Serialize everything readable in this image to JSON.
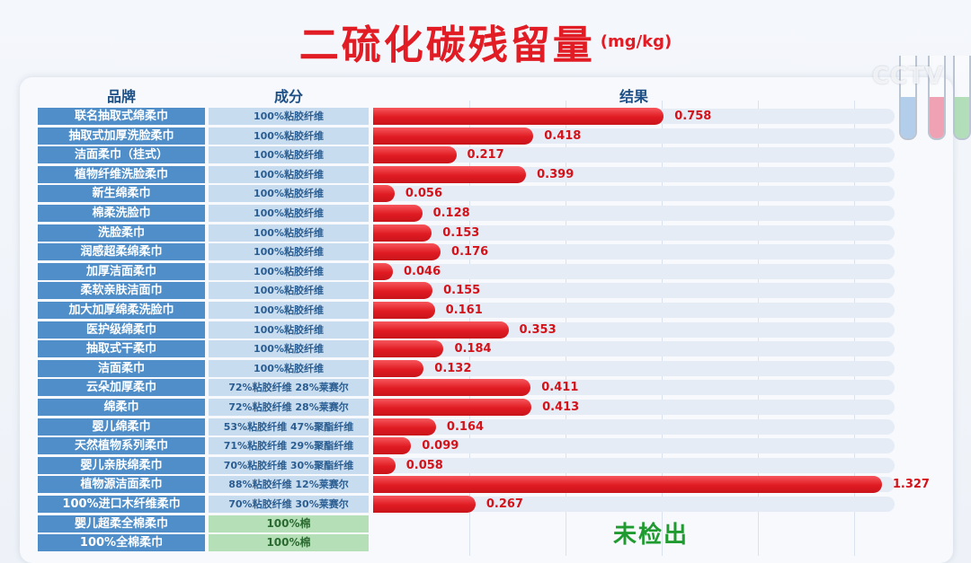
{
  "title": "二硫化碳残留量",
  "unit": "(mg/kg)",
  "watermark": "CCTV",
  "headers": {
    "brand": "品牌",
    "composition": "成分",
    "result": "结果"
  },
  "not_detected_text": "未检出",
  "colors": {
    "bar": "#e01b22",
    "brand_cell": "#4f8ec8",
    "comp_cell": "#c8dcef",
    "nd_cell": "#b5dfb6",
    "title": "#e11c24",
    "nd_text": "#1f9b30"
  },
  "chart_data": {
    "type": "bar",
    "orientation": "horizontal",
    "title": "二硫化碳残留量",
    "unit": "(mg/kg)",
    "xlim": [
      0,
      1.4
    ],
    "rows": [
      {
        "brand": "联名抽取式绵柔巾",
        "composition": "100%粘胶纤维",
        "value": 0.758,
        "label": "0.758"
      },
      {
        "brand": "抽取式加厚洗脸柔巾",
        "composition": "100%粘胶纤维",
        "value": 0.418,
        "label": "0.418"
      },
      {
        "brand": "洁面柔巾（挂式）",
        "composition": "100%粘胶纤维",
        "value": 0.217,
        "label": "0.217"
      },
      {
        "brand": "植物纤维洗脸柔巾",
        "composition": "100%粘胶纤维",
        "value": 0.399,
        "label": "0.399"
      },
      {
        "brand": "新生绵柔巾",
        "composition": "100%粘胶纤维",
        "value": 0.056,
        "label": "0.056"
      },
      {
        "brand": "棉柔洗脸巾",
        "composition": "100%粘胶纤维",
        "value": 0.128,
        "label": "0.128"
      },
      {
        "brand": "洗脸柔巾",
        "composition": "100%粘胶纤维",
        "value": 0.153,
        "label": "0.153"
      },
      {
        "brand": "润感超柔绵柔巾",
        "composition": "100%粘胶纤维",
        "value": 0.176,
        "label": "0.176"
      },
      {
        "brand": "加厚洁面柔巾",
        "composition": "100%粘胶纤维",
        "value": 0.046,
        "label": "0.046"
      },
      {
        "brand": "柔软亲肤洁面巾",
        "composition": "100%粘胶纤维",
        "value": 0.155,
        "label": "0.155"
      },
      {
        "brand": "加大加厚绵柔洗脸巾",
        "composition": "100%粘胶纤维",
        "value": 0.161,
        "label": "0.161"
      },
      {
        "brand": "医护级绵柔巾",
        "composition": "100%粘胶纤维",
        "value": 0.353,
        "label": "0.353"
      },
      {
        "brand": "抽取式干柔巾",
        "composition": "100%粘胶纤维",
        "value": 0.184,
        "label": "0.184"
      },
      {
        "brand": "洁面柔巾",
        "composition": "100%粘胶纤维",
        "value": 0.132,
        "label": "0.132"
      },
      {
        "brand": "云朵加厚柔巾",
        "composition": "72%粘胶纤维 28%莱赛尔",
        "value": 0.411,
        "label": "0.411"
      },
      {
        "brand": "绵柔巾",
        "composition": "72%粘胶纤维 28%莱赛尔",
        "value": 0.413,
        "label": "0.413"
      },
      {
        "brand": "婴儿绵柔巾",
        "composition": "53%粘胶纤维 47%聚酯纤维",
        "value": 0.164,
        "label": "0.164"
      },
      {
        "brand": "天然植物系列柔巾",
        "composition": "71%粘胶纤维 29%聚酯纤维",
        "value": 0.099,
        "label": "0.099"
      },
      {
        "brand": "婴儿亲肤绵柔巾",
        "composition": "70%粘胶纤维 30%聚酯纤维",
        "value": 0.058,
        "label": "0.058"
      },
      {
        "brand": "植物源洁面柔巾",
        "composition": "88%粘胶纤维 12%莱赛尔",
        "value": 1.327,
        "label": "1.327"
      },
      {
        "brand": "100%进口木纤维柔巾",
        "composition": "70%粘胶纤维 30%莱赛尔",
        "value": 0.267,
        "label": "0.267"
      },
      {
        "brand": "婴儿超柔全棉柔巾",
        "composition": "100%棉",
        "value": null,
        "label": ""
      },
      {
        "brand": "100%全棉柔巾",
        "composition": "100%棉",
        "value": null,
        "label": ""
      }
    ]
  }
}
